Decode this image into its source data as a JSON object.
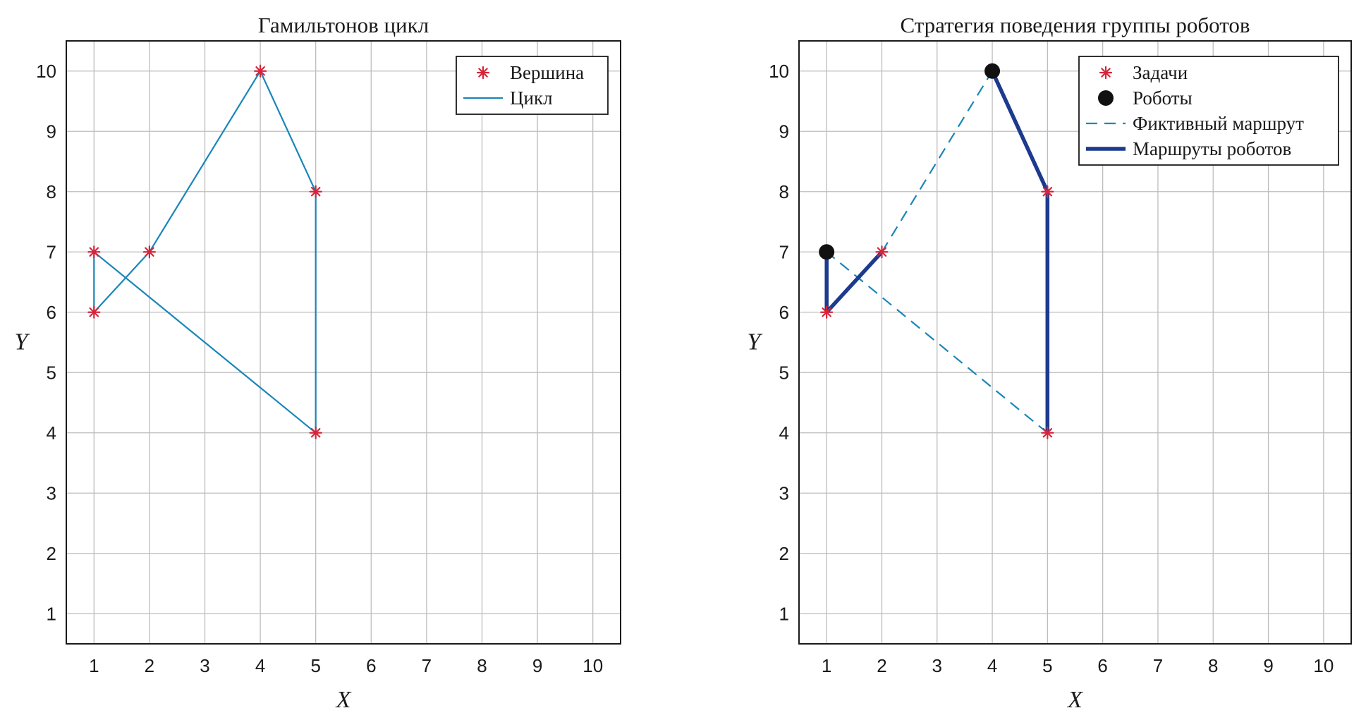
{
  "chart_data": [
    {
      "type": "line",
      "title": "Гамильтонов цикл",
      "xlabel": "X",
      "ylabel": "Y",
      "xlim": [
        0.5,
        10.5
      ],
      "ylim": [
        0.5,
        10.5
      ],
      "xticks": [
        "1",
        "2",
        "3",
        "4",
        "5",
        "6",
        "7",
        "8",
        "9",
        "10"
      ],
      "yticks": [
        "1",
        "2",
        "3",
        "4",
        "5",
        "6",
        "7",
        "8",
        "9",
        "10"
      ],
      "grid": true,
      "legend_position": "top-right",
      "series": [
        {
          "name": "Вершина",
          "style": "marker-asterisk",
          "color": "#d6243a",
          "points": [
            [
              1,
              7
            ],
            [
              1,
              6
            ],
            [
              2,
              7
            ],
            [
              4,
              10
            ],
            [
              5,
              8
            ],
            [
              5,
              4
            ]
          ]
        },
        {
          "name": "Цикл",
          "style": "line-solid",
          "color": "#1a86b8",
          "points": [
            [
              1,
              7
            ],
            [
              1,
              6
            ],
            [
              2,
              7
            ],
            [
              4,
              10
            ],
            [
              5,
              8
            ],
            [
              5,
              4
            ],
            [
              1,
              7
            ]
          ]
        }
      ]
    },
    {
      "type": "line",
      "title": "Стратегия поведения группы роботов",
      "xlabel": "X",
      "ylabel": "Y",
      "xlim": [
        0.5,
        10.5
      ],
      "ylim": [
        0.5,
        10.5
      ],
      "xticks": [
        "1",
        "2",
        "3",
        "4",
        "5",
        "6",
        "7",
        "8",
        "9",
        "10"
      ],
      "yticks": [
        "1",
        "2",
        "3",
        "4",
        "5",
        "6",
        "7",
        "8",
        "9",
        "10"
      ],
      "grid": true,
      "legend_position": "top-right",
      "series": [
        {
          "name": "Задачи",
          "style": "marker-asterisk",
          "color": "#d6243a",
          "points": [
            [
              1,
              6
            ],
            [
              2,
              7
            ],
            [
              5,
              8
            ],
            [
              5,
              4
            ]
          ]
        },
        {
          "name": "Роботы",
          "style": "marker-dot",
          "color": "#111111",
          "points": [
            [
              1,
              7
            ],
            [
              4,
              10
            ]
          ]
        },
        {
          "name": "Фиктивный маршрут",
          "style": "line-dashed",
          "color": "#1a86b8",
          "segments": [
            [
              [
                2,
                7
              ],
              [
                4,
                10
              ]
            ],
            [
              [
                5,
                4
              ],
              [
                1,
                7
              ]
            ]
          ]
        },
        {
          "name": "Маршруты роботов",
          "style": "line-thick",
          "color": "#1c3a8e",
          "segments": [
            [
              [
                1,
                7
              ],
              [
                1,
                6
              ],
              [
                2,
                7
              ]
            ],
            [
              [
                4,
                10
              ],
              [
                5,
                8
              ],
              [
                5,
                4
              ]
            ]
          ]
        }
      ]
    }
  ]
}
